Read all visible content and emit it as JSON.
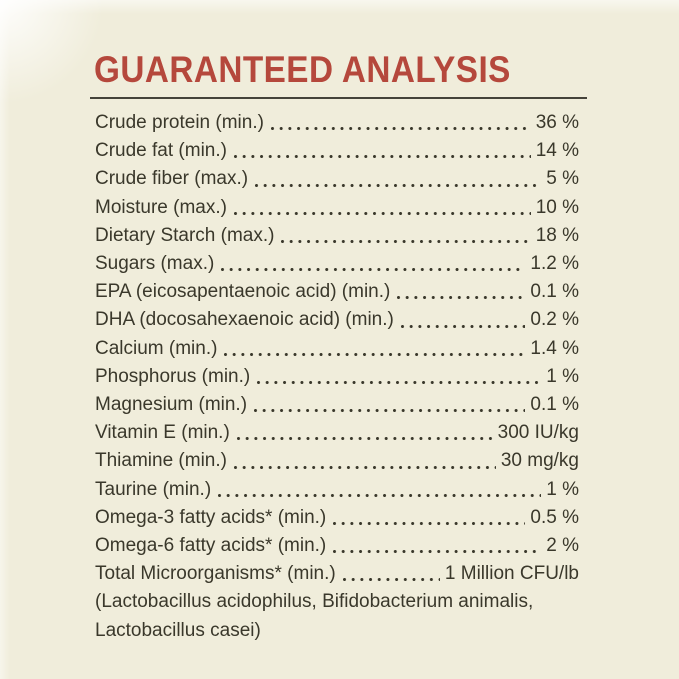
{
  "label": {
    "title": "GUARANTEED ANALYSIS",
    "rows": [
      {
        "name": "Crude protein (min.)",
        "value": "36 %"
      },
      {
        "name": "Crude fat (min.)",
        "value": "14 %"
      },
      {
        "name": "Crude fiber (max.)",
        "value": "5 %"
      },
      {
        "name": "Moisture (max.)",
        "value": "10 %"
      },
      {
        "name": "Dietary Starch (max.)",
        "value": "18 %"
      },
      {
        "name": "Sugars (max.)",
        "value": "1.2 %"
      },
      {
        "name": "EPA (eicosapentaenoic acid) (min.)",
        "value": "0.1 %"
      },
      {
        "name": "DHA (docosahexaenoic acid) (min.)",
        "value": "0.2 %"
      },
      {
        "name": "Calcium (min.)",
        "value": "1.4 %"
      },
      {
        "name": "Phosphorus (min.)",
        "value": "1 %"
      },
      {
        "name": "Magnesium (min.)",
        "value": "0.1 %"
      },
      {
        "name": "Vitamin E (min.)",
        "value": "300 IU/kg"
      },
      {
        "name": "Thiamine (min.)",
        "value": "30 mg/kg"
      },
      {
        "name": "Taurine (min.)",
        "value": "1 %"
      },
      {
        "name": "Omega-3 fatty acids* (min.)",
        "value": "0.5 %"
      },
      {
        "name": "Omega-6 fatty acids* (min.)",
        "value": "2 %"
      },
      {
        "name": "Total Microorganisms* (min.)",
        "value": "1 Million CFU/lb"
      }
    ],
    "footnote_lines": [
      "(Lactobacillus acidophilus, Bifidobacterium animalis,",
      "Lactobacillus casei)"
    ],
    "colors": {
      "background": "#f0eddb",
      "title": "#b5483c",
      "text": "#3a382b",
      "rule": "#45433a"
    }
  }
}
